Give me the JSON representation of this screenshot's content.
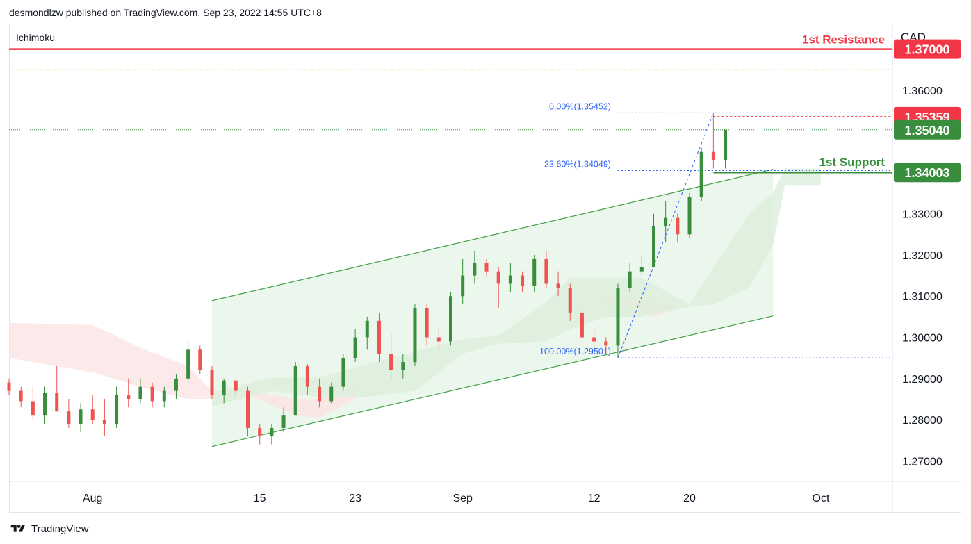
{
  "header": {
    "publisher_line": "desmondlzw published on TradingView.com, Sep 23, 2022 14:55 UTC+8"
  },
  "footer": {
    "brand": "TradingView"
  },
  "colors": {
    "up": "#388e3c",
    "down": "#ef5350",
    "resistance": "#f23645",
    "support": "#388e3c",
    "fib": "#2962ff",
    "channel": "#43a047",
    "channel_fill": "#e8f5e9",
    "cloud_bull": "#dcefdc",
    "cloud_bear": "#fbe3e3",
    "yellow_line": "#d4b000"
  },
  "chart_data": {
    "type": "candlestick",
    "indicator_label": "Ichimoku",
    "currency_label": "CAD",
    "ylim": [
      1.265,
      1.376
    ],
    "yticks": [
      "1.27000",
      "1.28000",
      "1.29000",
      "1.30000",
      "1.31000",
      "1.32000",
      "1.33000",
      "1.36000"
    ],
    "xticks": [
      {
        "label": "Aug",
        "date": "2022-08-01"
      },
      {
        "label": "15",
        "date": "2022-08-15"
      },
      {
        "label": "23",
        "date": "2022-08-23"
      },
      {
        "label": "Sep",
        "date": "2022-09-01"
      },
      {
        "label": "12",
        "date": "2022-09-12"
      },
      {
        "label": "20",
        "date": "2022-09-20"
      },
      {
        "label": "Oct",
        "date": "2022-10-01"
      }
    ],
    "xlim": [
      "2022-07-25",
      "2022-10-07"
    ],
    "price_labels": [
      {
        "name": "resistance",
        "value": "1.37000",
        "color": "#f23645"
      },
      {
        "name": "high",
        "value": "1.35359",
        "color": "#f23645"
      },
      {
        "name": "last",
        "value": "1.35040",
        "color": "#388e3c"
      },
      {
        "name": "support",
        "value": "1.34003",
        "color": "#388e3c"
      }
    ],
    "levels": {
      "resistance": {
        "label": "1st Resistance",
        "value": 1.37
      },
      "support": {
        "label": "1st Support",
        "value": 1.34003
      },
      "yellow_dotted": 1.3651,
      "last_dotted": 1.3504,
      "high_dotted": 1.35359
    },
    "fibonacci": [
      {
        "label": "0.00%(1.35452)",
        "value": 1.35452
      },
      {
        "label": "23.60%(1.34049)",
        "value": 1.34049
      },
      {
        "label": "100.00%(1.29501)",
        "value": 1.29501
      }
    ],
    "fib_anchor_low": {
      "date": "2022-09-14",
      "price": 1.29501
    },
    "fib_anchor_high": {
      "date": "2022-09-22",
      "price": 1.35452
    },
    "channel": {
      "lower_start": {
        "date": "2022-08-11",
        "price": 1.2735
      },
      "lower_end": {
        "date": "2022-09-27",
        "price": 1.3052
      },
      "upper_start": {
        "date": "2022-08-11",
        "price": 1.3089
      },
      "upper_end": {
        "date": "2022-09-27",
        "price": 1.3408
      }
    },
    "cloud_bull": [
      [
        "2022-08-11",
        1.2865,
        1.2832
      ],
      [
        "2022-08-16",
        1.2902,
        1.287
      ],
      [
        "2022-08-20",
        1.2902,
        1.2855
      ],
      [
        "2022-08-24",
        1.2935,
        1.2855
      ],
      [
        "2022-08-28",
        1.2965,
        1.287
      ],
      [
        "2022-09-01",
        1.2995,
        1.296
      ],
      [
        "2022-09-04",
        1.3005,
        1.2985
      ],
      [
        "2022-09-08",
        1.3085,
        1.299
      ],
      [
        "2022-09-10",
        1.3145,
        1.302
      ],
      [
        "2022-09-13",
        1.3145,
        1.305
      ],
      [
        "2022-09-16",
        1.3145,
        1.305
      ],
      [
        "2022-09-20",
        1.308,
        1.3075
      ],
      [
        "2022-09-22",
        1.317,
        1.308
      ],
      [
        "2022-09-25",
        1.33,
        1.312
      ],
      [
        "2022-09-27",
        1.335,
        1.3225
      ],
      [
        "2022-09-28",
        1.341,
        1.337
      ],
      [
        "2022-10-01",
        1.341,
        1.337
      ]
    ],
    "cloud_bear": [
      [
        "2022-07-25",
        1.3035,
        1.295
      ],
      [
        "2022-08-01",
        1.303,
        1.2915
      ],
      [
        "2022-08-05",
        1.2975,
        1.288
      ],
      [
        "2022-08-09",
        1.293,
        1.285
      ],
      [
        "2022-08-11",
        1.287,
        1.285
      ],
      [
        "2022-08-14",
        1.287,
        1.286
      ],
      [
        "2022-08-18",
        1.285,
        1.281
      ],
      [
        "2022-08-20",
        1.285,
        1.2805
      ],
      [
        "2022-08-23",
        1.287,
        1.285
      ],
      [
        "2022-09-13",
        1.309,
        1.308
      ],
      [
        "2022-09-15",
        1.3095,
        1.3065
      ],
      [
        "2022-09-17",
        1.308,
        1.305
      ],
      [
        "2022-09-19",
        1.308,
        1.307
      ]
    ],
    "candles": [
      [
        "2022-07-25",
        1.289,
        1.29,
        1.286,
        1.287
      ],
      [
        "2022-07-26",
        1.287,
        1.288,
        1.283,
        1.2845
      ],
      [
        "2022-07-27",
        1.2845,
        1.288,
        1.28,
        1.281
      ],
      [
        "2022-07-28",
        1.281,
        1.288,
        1.279,
        1.2865
      ],
      [
        "2022-07-29",
        1.2865,
        1.293,
        1.282,
        1.282
      ],
      [
        "2022-07-30",
        1.282,
        1.285,
        1.278,
        1.279
      ],
      [
        "2022-07-31",
        1.279,
        1.284,
        1.277,
        1.2825
      ],
      [
        "2022-08-01",
        1.2825,
        1.286,
        1.279,
        1.28
      ],
      [
        "2022-08-02",
        1.28,
        1.285,
        1.276,
        1.279
      ],
      [
        "2022-08-03",
        1.279,
        1.288,
        1.278,
        1.286
      ],
      [
        "2022-08-04",
        1.286,
        1.29,
        1.283,
        1.285
      ],
      [
        "2022-08-05",
        1.285,
        1.29,
        1.284,
        1.288
      ],
      [
        "2022-08-06",
        1.288,
        1.289,
        1.283,
        1.2845
      ],
      [
        "2022-08-07",
        1.2845,
        1.288,
        1.283,
        1.287
      ],
      [
        "2022-08-08",
        1.287,
        1.291,
        1.285,
        1.29
      ],
      [
        "2022-08-09",
        1.29,
        1.299,
        1.289,
        1.297
      ],
      [
        "2022-08-10",
        1.297,
        1.298,
        1.291,
        1.292
      ],
      [
        "2022-08-11",
        1.292,
        1.293,
        1.285,
        1.286
      ],
      [
        "2022-08-12",
        1.286,
        1.29,
        1.284,
        1.2895
      ],
      [
        "2022-08-13",
        1.2895,
        1.29,
        1.2855,
        1.287
      ],
      [
        "2022-08-14",
        1.287,
        1.288,
        1.276,
        1.278
      ],
      [
        "2022-08-15",
        1.278,
        1.279,
        1.274,
        1.276
      ],
      [
        "2022-08-16",
        1.276,
        1.279,
        1.274,
        1.278
      ],
      [
        "2022-08-17",
        1.278,
        1.283,
        1.277,
        1.281
      ],
      [
        "2022-08-18",
        1.281,
        1.294,
        1.281,
        1.293
      ],
      [
        "2022-08-19",
        1.293,
        1.2935,
        1.286,
        1.288
      ],
      [
        "2022-08-20",
        1.288,
        1.29,
        1.283,
        1.2845
      ],
      [
        "2022-08-21",
        1.2845,
        1.289,
        1.284,
        1.288
      ],
      [
        "2022-08-22",
        1.288,
        1.296,
        1.287,
        1.295
      ],
      [
        "2022-08-23",
        1.295,
        1.302,
        1.294,
        1.3
      ],
      [
        "2022-08-24",
        1.3,
        1.305,
        1.297,
        1.304
      ],
      [
        "2022-08-25",
        1.304,
        1.306,
        1.294,
        1.296
      ],
      [
        "2022-08-26",
        1.296,
        1.301,
        1.29,
        1.292
      ],
      [
        "2022-08-27",
        1.292,
        1.296,
        1.29,
        1.294
      ],
      [
        "2022-08-28",
        1.294,
        1.308,
        1.293,
        1.307
      ],
      [
        "2022-08-29",
        1.307,
        1.308,
        1.298,
        1.3
      ],
      [
        "2022-08-30",
        1.3,
        1.302,
        1.297,
        1.299
      ],
      [
        "2022-08-31",
        1.299,
        1.311,
        1.298,
        1.31
      ],
      [
        "2022-09-01",
        1.31,
        1.319,
        1.308,
        1.315
      ],
      [
        "2022-09-02",
        1.315,
        1.321,
        1.313,
        1.318
      ],
      [
        "2022-09-03",
        1.318,
        1.319,
        1.315,
        1.316
      ],
      [
        "2022-09-04",
        1.316,
        1.317,
        1.307,
        1.313
      ],
      [
        "2022-09-05",
        1.313,
        1.318,
        1.311,
        1.315
      ],
      [
        "2022-09-06",
        1.315,
        1.316,
        1.311,
        1.3125
      ],
      [
        "2022-09-07",
        1.3125,
        1.32,
        1.311,
        1.319
      ],
      [
        "2022-09-08",
        1.319,
        1.321,
        1.312,
        1.313
      ],
      [
        "2022-09-09",
        1.313,
        1.316,
        1.31,
        1.312
      ],
      [
        "2022-09-10",
        1.312,
        1.313,
        1.304,
        1.306
      ],
      [
        "2022-09-11",
        1.306,
        1.307,
        1.299,
        1.3
      ],
      [
        "2022-09-12",
        1.3,
        1.302,
        1.297,
        1.299
      ],
      [
        "2022-09-13",
        1.299,
        1.3,
        1.296,
        1.298
      ],
      [
        "2022-09-14",
        1.298,
        1.313,
        1.295,
        1.312
      ],
      [
        "2022-09-15",
        1.312,
        1.318,
        1.311,
        1.316
      ],
      [
        "2022-09-16",
        1.316,
        1.32,
        1.315,
        1.317
      ],
      [
        "2022-09-17",
        1.317,
        1.33,
        1.317,
        1.327
      ],
      [
        "2022-09-18",
        1.327,
        1.333,
        1.323,
        1.329
      ],
      [
        "2022-09-19",
        1.329,
        1.33,
        1.323,
        1.325
      ],
      [
        "2022-09-20",
        1.325,
        1.335,
        1.324,
        1.334
      ],
      [
        "2022-09-21",
        1.334,
        1.346,
        1.333,
        1.345
      ],
      [
        "2022-09-22",
        1.345,
        1.3545,
        1.341,
        1.343
      ],
      [
        "2022-09-23",
        1.343,
        1.35,
        1.341,
        1.3504
      ]
    ]
  }
}
